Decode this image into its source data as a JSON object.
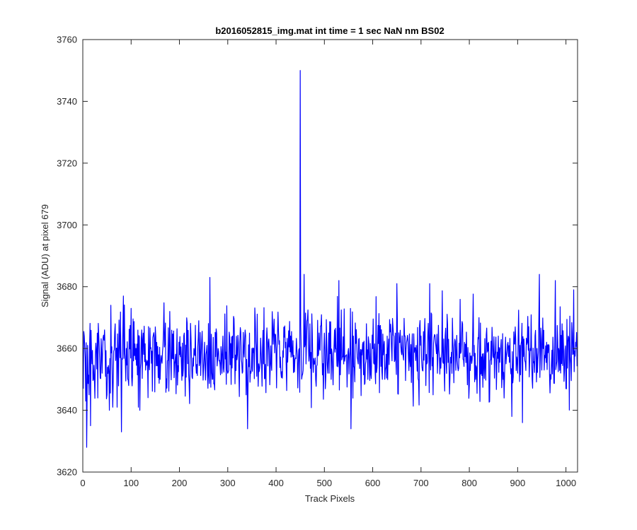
{
  "chart_data": {
    "type": "line",
    "title": "b2016052815_img.mat int time = 1 sec  NaN nm BS02",
    "xlabel": "Track Pixels",
    "ylabel": "Signal (ADU) at pixel 679",
    "xlim": [
      0,
      1024
    ],
    "ylim": [
      3620,
      3760
    ],
    "xticks": [
      0,
      100,
      200,
      300,
      400,
      500,
      600,
      700,
      800,
      900,
      1000
    ],
    "yticks": [
      3620,
      3640,
      3660,
      3680,
      3700,
      3720,
      3740,
      3760
    ],
    "grid": false,
    "line_color": "#0000ff",
    "series": [
      {
        "noise_profile": {
          "n_points": 1024,
          "baseline": 3658,
          "std": 7
        },
        "points": [
          [
            1,
            3647
          ],
          [
            3,
            3664
          ],
          [
            6,
            3643
          ],
          [
            8,
            3628
          ],
          [
            10,
            3661
          ],
          [
            13,
            3645
          ],
          [
            16,
            3635
          ],
          [
            18,
            3659
          ],
          [
            22,
            3650
          ],
          [
            26,
            3658
          ],
          [
            30,
            3665
          ],
          [
            35,
            3656
          ],
          [
            40,
            3652
          ],
          [
            45,
            3666
          ],
          [
            50,
            3645
          ],
          [
            55,
            3640
          ],
          [
            58,
            3674
          ],
          [
            62,
            3641
          ],
          [
            67,
            3668
          ],
          [
            71,
            3641
          ],
          [
            76,
            3662
          ],
          [
            80,
            3633
          ],
          [
            84,
            3677
          ],
          [
            90,
            3660
          ],
          [
            95,
            3648
          ],
          [
            100,
            3673
          ],
          [
            105,
            3656
          ],
          [
            110,
            3660
          ],
          [
            115,
            3641
          ],
          [
            118,
            3640
          ],
          [
            122,
            3666
          ],
          [
            130,
            3653
          ],
          [
            140,
            3660
          ],
          [
            150,
            3667
          ],
          [
            160,
            3650
          ],
          [
            170,
            3662
          ],
          [
            180,
            3672
          ],
          [
            190,
            3655
          ],
          [
            200,
            3658
          ],
          [
            210,
            3665
          ],
          [
            220,
            3649
          ],
          [
            230,
            3660
          ],
          [
            240,
            3669
          ],
          [
            250,
            3654
          ],
          [
            257,
            3661
          ],
          [
            263,
            3683
          ],
          [
            268,
            3650
          ],
          [
            280,
            3660
          ],
          [
            290,
            3664
          ],
          [
            300,
            3652
          ],
          [
            310,
            3664
          ],
          [
            320,
            3658
          ],
          [
            330,
            3652
          ],
          [
            338,
            3645
          ],
          [
            341,
            3634
          ],
          [
            345,
            3665
          ],
          [
            350,
            3660
          ],
          [
            360,
            3651
          ],
          [
            370,
            3655
          ],
          [
            380,
            3662
          ],
          [
            390,
            3655
          ],
          [
            400,
            3659
          ],
          [
            410,
            3652
          ],
          [
            420,
            3662
          ],
          [
            430,
            3664
          ],
          [
            440,
            3657
          ],
          [
            448,
            3660
          ],
          [
            450,
            3750
          ],
          [
            452,
            3660
          ],
          [
            458,
            3684
          ],
          [
            462,
            3655
          ],
          [
            470,
            3668
          ],
          [
            480,
            3655
          ],
          [
            490,
            3660
          ],
          [
            500,
            3665
          ],
          [
            510,
            3652
          ],
          [
            520,
            3661
          ],
          [
            530,
            3682
          ],
          [
            540,
            3655
          ],
          [
            550,
            3660
          ],
          [
            555,
            3634
          ],
          [
            560,
            3664
          ],
          [
            570,
            3655
          ],
          [
            580,
            3662
          ],
          [
            590,
            3650
          ],
          [
            600,
            3660
          ],
          [
            610,
            3660
          ],
          [
            620,
            3650
          ],
          [
            630,
            3664
          ],
          [
            640,
            3656
          ],
          [
            650,
            3681
          ],
          [
            660,
            3658
          ],
          [
            670,
            3662
          ],
          [
            680,
            3649
          ],
          [
            690,
            3661
          ],
          [
            700,
            3664
          ],
          [
            710,
            3648
          ],
          [
            718,
            3681
          ],
          [
            725,
            3645
          ],
          [
            730,
            3662
          ],
          [
            740,
            3657
          ],
          [
            750,
            3664
          ],
          [
            760,
            3651
          ],
          [
            770,
            3663
          ],
          [
            780,
            3657
          ],
          [
            790,
            3662
          ],
          [
            800,
            3648
          ],
          [
            810,
            3661
          ],
          [
            820,
            3670
          ],
          [
            830,
            3655
          ],
          [
            840,
            3662
          ],
          [
            850,
            3657
          ],
          [
            860,
            3664
          ],
          [
            870,
            3650
          ],
          [
            880,
            3662
          ],
          [
            888,
            3638
          ],
          [
            895,
            3667
          ],
          [
            900,
            3652
          ],
          [
            905,
            3661
          ],
          [
            910,
            3636
          ],
          [
            915,
            3656
          ],
          [
            920,
            3662
          ],
          [
            930,
            3650
          ],
          [
            940,
            3660
          ],
          [
            945,
            3684
          ],
          [
            950,
            3653
          ],
          [
            960,
            3662
          ],
          [
            970,
            3655
          ],
          [
            978,
            3682
          ],
          [
            985,
            3660
          ],
          [
            992,
            3668
          ],
          [
            1000,
            3647
          ],
          [
            1005,
            3664
          ],
          [
            1010,
            3655
          ],
          [
            1016,
            3679
          ],
          [
            1020,
            3662
          ],
          [
            1024,
            3658
          ]
        ]
      }
    ]
  }
}
